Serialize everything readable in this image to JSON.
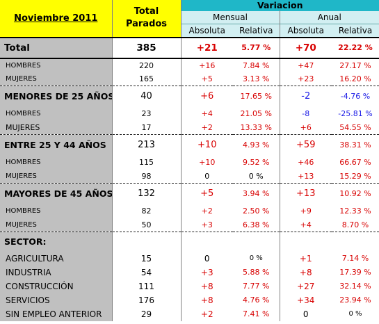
{
  "header": {
    "period": "Noviembre 2011",
    "total_parados_line1": "Total",
    "total_parados_line2": "Parados",
    "variacion": "Variacion",
    "mensual": "Mensual",
    "anual": "Anual",
    "absoluta": "Absoluta",
    "relativa": "Relativa"
  },
  "rows": [
    {
      "label": "Total",
      "total": "385",
      "m_abs": "+21",
      "m_rel": "5.77 %",
      "a_abs": "+70",
      "a_rel": "22.22 %"
    },
    {
      "label": "HOMBRES",
      "total": "220",
      "m_abs": "+16",
      "m_rel": "7.84 %",
      "a_abs": "+47",
      "a_rel": "27.17 %"
    },
    {
      "label": "MUJERES",
      "total": "165",
      "m_abs": "+5",
      "m_rel": "3.13 %",
      "a_abs": "+23",
      "a_rel": "16.20 %"
    },
    {
      "label": "MENORES DE 25 AÑOS:",
      "total": "40",
      "m_abs": "+6",
      "m_rel": "17.65 %",
      "a_abs": "-2",
      "a_rel": "-4.76 %"
    },
    {
      "label": "HOMBRES",
      "total": "23",
      "m_abs": "+4",
      "m_rel": "21.05 %",
      "a_abs": "-8",
      "a_rel": "-25.81 %"
    },
    {
      "label": "MUJERES",
      "total": "17",
      "m_abs": "+2",
      "m_rel": "13.33 %",
      "a_abs": "+6",
      "a_rel": "54.55 %"
    },
    {
      "label": "ENTRE 25 Y 44 AÑOS",
      "total": "213",
      "m_abs": "+10",
      "m_rel": "4.93 %",
      "a_abs": "+59",
      "a_rel": "38.31 %"
    },
    {
      "label": "HOMBRES",
      "total": "115",
      "m_abs": "+10",
      "m_rel": "9.52 %",
      "a_abs": "+46",
      "a_rel": "66.67 %"
    },
    {
      "label": "MUJERES",
      "total": "98",
      "m_abs": "0",
      "m_rel": "0 %",
      "a_abs": "+13",
      "a_rel": "15.29 %"
    },
    {
      "label": "MAYORES DE 45 AÑOS",
      "total": "132",
      "m_abs": "+5",
      "m_rel": "3.94 %",
      "a_abs": "+13",
      "a_rel": "10.92 %"
    },
    {
      "label": "HOMBRES",
      "total": "82",
      "m_abs": "+2",
      "m_rel": "2.50 %",
      "a_abs": "+9",
      "a_rel": "12.33 %"
    },
    {
      "label": "MUJERES",
      "total": "50",
      "m_abs": "+3",
      "m_rel": "6.38 %",
      "a_abs": "+4",
      "a_rel": "8.70 %"
    },
    {
      "label": "SECTOR:",
      "total": "",
      "m_abs": "",
      "m_rel": "",
      "a_abs": "",
      "a_rel": ""
    },
    {
      "label": "AGRICULTURA",
      "total": "15",
      "m_abs": "0",
      "m_rel": "0 %",
      "a_abs": "+1",
      "a_rel": "7.14 %"
    },
    {
      "label": "INDUSTRIA",
      "total": "54",
      "m_abs": "+3",
      "m_rel": "5.88 %",
      "a_abs": "+8",
      "a_rel": "17.39 %"
    },
    {
      "label": "CONSTRUCCIÓN",
      "total": "111",
      "m_abs": "+8",
      "m_rel": "7.77 %",
      "a_abs": "+27",
      "a_rel": "32.14 %"
    },
    {
      "label": "SERVICIOS",
      "total": "176",
      "m_abs": "+8",
      "m_rel": "4.76 %",
      "a_abs": "+34",
      "a_rel": "23.94 %"
    },
    {
      "label": "SIN EMPLEO ANTERIOR",
      "total": "29",
      "m_abs": "+2",
      "m_rel": "7.41 %",
      "a_abs": "0",
      "a_rel": "0 %"
    }
  ]
}
